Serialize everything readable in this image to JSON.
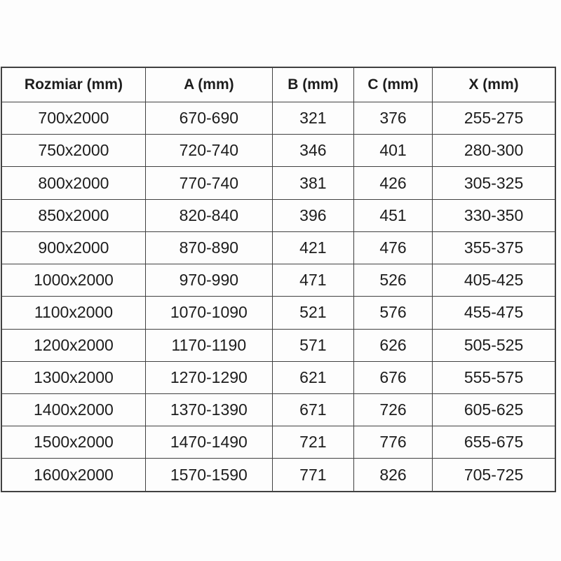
{
  "table": {
    "columns": [
      "Rozmiar (mm)",
      "A (mm)",
      "B (mm)",
      "C (mm)",
      "X (mm)"
    ],
    "rows": [
      [
        "700x2000",
        "670-690",
        "321",
        "376",
        "255-275"
      ],
      [
        "750x2000",
        "720-740",
        "346",
        "401",
        "280-300"
      ],
      [
        "800x2000",
        "770-740",
        "381",
        "426",
        "305-325"
      ],
      [
        "850x2000",
        "820-840",
        "396",
        "451",
        "330-350"
      ],
      [
        "900x2000",
        "870-890",
        "421",
        "476",
        "355-375"
      ],
      [
        "1000x2000",
        "970-990",
        "471",
        "526",
        "405-425"
      ],
      [
        "1100x2000",
        "1070-1090",
        "521",
        "576",
        "455-475"
      ],
      [
        "1200x2000",
        "1170-1190",
        "571",
        "626",
        "505-525"
      ],
      [
        "1300x2000",
        "1270-1290",
        "621",
        "676",
        "555-575"
      ],
      [
        "1400x2000",
        "1370-1390",
        "671",
        "726",
        "605-625"
      ],
      [
        "1500x2000",
        "1470-1490",
        "721",
        "776",
        "655-675"
      ],
      [
        "1600x2000",
        "1570-1590",
        "771",
        "826",
        "705-725"
      ]
    ]
  },
  "colors": {
    "border": "#414141",
    "text": "#1d1d1d",
    "background": "#fdfdfd"
  }
}
